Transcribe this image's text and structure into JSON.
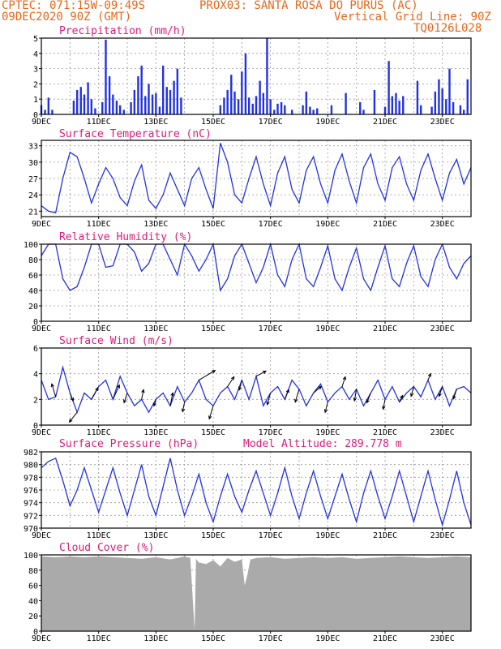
{
  "header": {
    "line1_left": "CPTEC:  071:15W-09:49S",
    "line1_right": "PROX03: SANTA ROSA DO PURUS (AC)",
    "line2_left": "09DEC2020 90Z (GMT)",
    "line2_right": "Vertical Grid Line: 90Z",
    "line3_right": "TQ0126L028"
  },
  "colors": {
    "header": "#e8661a",
    "title": "#e0197a",
    "series": "#2233dd",
    "cloud": "#aaaaaa"
  },
  "x_ticks": [
    "9DEC",
    "11DEC",
    "13DEC",
    "15DEC",
    "17DEC",
    "19DEC",
    "21DEC",
    "23DEC"
  ],
  "x_range_days": [
    9,
    24
  ],
  "chart_data": [
    {
      "id": "precip",
      "type": "bar",
      "title": "Precipitation (mm/h)",
      "ylim": [
        0,
        5
      ],
      "yticks": [
        "0",
        "1",
        "2",
        "3",
        "4",
        "5"
      ],
      "x": [
        9.0,
        9.13,
        9.25,
        9.38,
        10.13,
        10.25,
        10.38,
        10.5,
        10.63,
        10.75,
        10.88,
        11.13,
        11.25,
        11.38,
        11.5,
        11.63,
        11.75,
        11.88,
        12.13,
        12.25,
        12.38,
        12.5,
        12.63,
        12.75,
        12.88,
        13.0,
        13.13,
        13.25,
        13.38,
        13.5,
        13.63,
        13.75,
        13.88,
        15.25,
        15.38,
        15.5,
        15.63,
        15.75,
        15.88,
        16.0,
        16.13,
        16.25,
        16.38,
        16.5,
        16.63,
        16.75,
        16.88,
        17.0,
        17.13,
        17.25,
        17.38,
        17.5,
        17.75,
        18.13,
        18.25,
        18.38,
        18.5,
        18.63,
        19.13,
        19.63,
        20.13,
        20.25,
        20.63,
        21.0,
        21.13,
        21.25,
        21.38,
        21.5,
        21.63,
        22.13,
        22.25,
        22.63,
        22.75,
        22.88,
        23.0,
        23.13,
        23.25,
        23.38,
        23.63,
        23.75,
        23.88
      ],
      "values": [
        0.6,
        0.3,
        1.1,
        0.3,
        0.9,
        1.6,
        1.8,
        1.3,
        2.1,
        1.0,
        0.4,
        0.8,
        4.9,
        2.5,
        1.3,
        0.9,
        0.6,
        0.3,
        0.8,
        1.6,
        2.5,
        3.2,
        1.2,
        2.0,
        1.3,
        1.4,
        0.5,
        3.2,
        1.8,
        1.6,
        2.2,
        3.0,
        1.1,
        0.6,
        1.1,
        1.6,
        2.6,
        1.5,
        1.0,
        2.8,
        4.0,
        1.1,
        0.7,
        1.2,
        2.2,
        1.4,
        5.0,
        1.0,
        0.3,
        0.7,
        0.8,
        0.6,
        0.3,
        0.6,
        1.5,
        0.5,
        0.3,
        0.4,
        0.6,
        1.4,
        0.8,
        0.3,
        1.6,
        0.5,
        3.5,
        1.2,
        1.4,
        0.9,
        1.2,
        2.2,
        0.6,
        0.5,
        1.5,
        2.3,
        1.7,
        1.0,
        3.0,
        0.8,
        0.6,
        0.3,
        2.3
      ]
    },
    {
      "id": "temp",
      "type": "line",
      "title": "Surface Temperature (nC)",
      "ylim": [
        20,
        34
      ],
      "yticks": [
        "21",
        "24",
        "27",
        "30",
        "33"
      ],
      "tickvals": [
        21,
        24,
        27,
        30,
        33
      ],
      "x": [
        9.0,
        9.25,
        9.5,
        9.75,
        10.0,
        10.25,
        10.5,
        10.75,
        11.0,
        11.25,
        11.5,
        11.75,
        12.0,
        12.25,
        12.5,
        12.75,
        13.0,
        13.25,
        13.5,
        13.75,
        14.0,
        14.25,
        14.5,
        14.75,
        15.0,
        15.25,
        15.5,
        15.75,
        16.0,
        16.25,
        16.5,
        16.75,
        17.0,
        17.25,
        17.5,
        17.75,
        18.0,
        18.25,
        18.5,
        18.75,
        19.0,
        19.25,
        19.5,
        19.75,
        20.0,
        20.25,
        20.5,
        20.75,
        21.0,
        21.25,
        21.5,
        21.75,
        22.0,
        22.25,
        22.5,
        22.75,
        23.0,
        23.25,
        23.5,
        23.75,
        24.0
      ],
      "values": [
        22,
        21,
        20.7,
        27,
        31.8,
        31,
        27,
        22.5,
        26,
        29,
        27,
        23.5,
        22,
        26.5,
        29.5,
        23,
        21.5,
        24,
        28,
        25,
        22,
        27,
        29,
        25,
        21.5,
        33.5,
        30,
        24,
        22.5,
        27,
        31,
        26,
        22,
        28,
        31,
        25,
        22.5,
        28.5,
        31,
        26,
        22.5,
        28.5,
        31.5,
        26.5,
        22.5,
        29,
        31.5,
        26,
        23,
        29,
        31,
        26,
        23,
        28.5,
        31.5,
        27,
        23,
        28,
        30.5,
        26,
        29
      ]
    },
    {
      "id": "rh",
      "type": "line",
      "title": "Relative Humidity (%)",
      "ylim": [
        0,
        100
      ],
      "yticks": [
        "0",
        "20",
        "40",
        "60",
        "80",
        "100"
      ],
      "tickvals": [
        0,
        20,
        40,
        60,
        80,
        100
      ],
      "x": [
        9.0,
        9.25,
        9.5,
        9.75,
        10.0,
        10.25,
        10.5,
        10.75,
        11.0,
        11.25,
        11.5,
        11.75,
        12.0,
        12.25,
        12.5,
        12.75,
        13.0,
        13.25,
        13.5,
        13.75,
        14.0,
        14.25,
        14.5,
        14.75,
        15.0,
        15.25,
        15.5,
        15.75,
        16.0,
        16.25,
        16.5,
        16.75,
        17.0,
        17.25,
        17.5,
        17.75,
        18.0,
        18.25,
        18.5,
        18.75,
        19.0,
        19.25,
        19.5,
        19.75,
        20.0,
        20.25,
        20.5,
        20.75,
        21.0,
        21.25,
        21.5,
        21.75,
        22.0,
        22.25,
        22.5,
        22.75,
        23.0,
        23.25,
        23.5,
        23.75,
        24.0
      ],
      "values": [
        85,
        100,
        100,
        55,
        40,
        45,
        70,
        100,
        100,
        70,
        72,
        100,
        100,
        90,
        65,
        75,
        100,
        100,
        80,
        60,
        100,
        85,
        65,
        80,
        100,
        40,
        55,
        85,
        100,
        75,
        50,
        70,
        100,
        60,
        45,
        80,
        100,
        55,
        45,
        70,
        98,
        55,
        40,
        70,
        95,
        55,
        40,
        70,
        98,
        55,
        45,
        75,
        98,
        58,
        45,
        80,
        100,
        70,
        55,
        75,
        85
      ]
    },
    {
      "id": "wind",
      "type": "line",
      "title": "Surface Wind (m/s)",
      "ylim": [
        0,
        6
      ],
      "yticks": [
        "0",
        "2",
        "4",
        "6"
      ],
      "tickvals": [
        0,
        2,
        4,
        6
      ],
      "x": [
        9.0,
        9.25,
        9.5,
        9.75,
        10.0,
        10.25,
        10.5,
        10.75,
        11.0,
        11.25,
        11.5,
        11.75,
        12.0,
        12.25,
        12.5,
        12.75,
        13.0,
        13.25,
        13.5,
        13.75,
        14.0,
        14.25,
        14.5,
        14.75,
        15.0,
        15.25,
        15.5,
        15.75,
        16.0,
        16.25,
        16.5,
        16.75,
        17.0,
        17.25,
        17.5,
        17.75,
        18.0,
        18.25,
        18.5,
        18.75,
        19.0,
        19.25,
        19.5,
        19.75,
        20.0,
        20.25,
        20.5,
        20.75,
        21.0,
        21.25,
        21.5,
        21.75,
        22.0,
        22.25,
        22.5,
        22.75,
        23.0,
        23.25,
        23.5,
        23.75,
        24.0
      ],
      "values": [
        3.5,
        2.0,
        2.2,
        4.5,
        2.5,
        1.0,
        2.5,
        2.0,
        3.0,
        3.5,
        2.0,
        3.8,
        2.5,
        1.5,
        2.0,
        1.0,
        2.0,
        2.5,
        1.5,
        3.0,
        1.8,
        2.5,
        3.5,
        2.0,
        1.5,
        2.5,
        3.0,
        2.0,
        3.5,
        2.0,
        3.8,
        1.5,
        2.5,
        3.0,
        2.0,
        3.5,
        2.8,
        1.5,
        2.5,
        3.2,
        1.8,
        2.5,
        3.0,
        2.0,
        2.8,
        1.5,
        2.5,
        3.5,
        2.0,
        3.0,
        1.8,
        2.5,
        3.0,
        2.2,
        3.5,
        2.0,
        3.0,
        1.5,
        2.8,
        3.0,
        2.5
      ],
      "arrows": {
        "x": [
          9.5,
          10.0,
          10.25,
          10.75,
          11.5,
          12.0,
          12.5,
          13.0,
          13.5,
          14.0,
          14.5,
          15.0,
          15.5,
          16.0,
          16.5,
          17.0,
          17.5,
          18.0,
          18.5,
          19.0,
          19.5,
          20.0,
          20.5,
          21.0,
          21.5,
          22.0,
          22.5,
          23.0,
          23.5
        ],
        "u": [
          -0.6,
          0.5,
          -1.2,
          1.0,
          1.0,
          -0.5,
          0.3,
          -0.3,
          0.4,
          -0.3,
          2.5,
          -0.6,
          1.0,
          -0.4,
          1.5,
          -0.5,
          0.6,
          -0.6,
          1.2,
          -0.4,
          0.5,
          -0.3,
          -0.6,
          -0.3,
          0.5,
          -0.4,
          0.4,
          -0.5,
          -0.5
        ],
        "v": [
          2.0,
          -1.2,
          -1.5,
          1.8,
          2.2,
          -1.5,
          1.5,
          -1.0,
          2.0,
          -1.5,
          1.5,
          -2.0,
          1.5,
          -1.5,
          0.8,
          -1.8,
          1.5,
          -2.0,
          1.0,
          -1.6,
          1.5,
          -1.8,
          -1.5,
          -1.5,
          1.0,
          -1.5,
          1.0,
          -1.5,
          -1.5
        ]
      }
    },
    {
      "id": "pressure",
      "type": "line",
      "title": "Surface Pressure (hPa)",
      "annotation": "Model Altitude: 289.778 m",
      "ylim": [
        970,
        982
      ],
      "yticks": [
        "970",
        "972",
        "974",
        "976",
        "978",
        "980",
        "982"
      ],
      "tickvals": [
        970,
        972,
        974,
        976,
        978,
        980,
        982
      ],
      "x": [
        9.0,
        9.25,
        9.5,
        9.75,
        10.0,
        10.25,
        10.5,
        10.75,
        11.0,
        11.25,
        11.5,
        11.75,
        12.0,
        12.25,
        12.5,
        12.75,
        13.0,
        13.25,
        13.5,
        13.75,
        14.0,
        14.25,
        14.5,
        14.75,
        15.0,
        15.25,
        15.5,
        15.75,
        16.0,
        16.25,
        16.5,
        16.75,
        17.0,
        17.25,
        17.5,
        17.75,
        18.0,
        18.25,
        18.5,
        18.75,
        19.0,
        19.25,
        19.5,
        19.75,
        20.0,
        20.25,
        20.5,
        20.75,
        21.0,
        21.25,
        21.5,
        21.75,
        22.0,
        22.25,
        22.5,
        22.75,
        23.0,
        23.25,
        23.5,
        23.75,
        24.0
      ],
      "values": [
        979.5,
        980.5,
        981,
        977.5,
        973.5,
        976,
        979.5,
        976,
        972.5,
        976,
        979.5,
        975.5,
        972,
        976,
        980,
        975,
        972,
        976.5,
        981,
        976,
        972,
        975,
        978.5,
        974,
        971,
        975,
        978.5,
        975,
        972.5,
        976,
        979,
        975.5,
        972,
        975.5,
        979.5,
        975,
        971.5,
        975.5,
        979,
        975,
        971.5,
        975,
        978.5,
        974.5,
        971,
        975.5,
        979,
        975,
        971.5,
        975,
        979,
        975,
        971,
        975,
        979,
        974.5,
        970.5,
        974.5,
        979,
        974,
        970.5
      ]
    },
    {
      "id": "cloud",
      "type": "area",
      "title": "Cloud Cover (%)",
      "ylim": [
        0,
        100
      ],
      "yticks": [
        "0",
        "20",
        "40",
        "60",
        "80",
        "100"
      ],
      "tickvals": [
        0,
        20,
        40,
        60,
        80,
        100
      ],
      "x": [
        9.0,
        9.5,
        10.0,
        10.5,
        11.0,
        11.5,
        12.0,
        12.5,
        13.0,
        13.5,
        14.0,
        14.2,
        14.35,
        14.4,
        14.5,
        14.75,
        15.0,
        15.25,
        15.5,
        15.75,
        16.0,
        16.1,
        16.2,
        16.3,
        16.5,
        17.0,
        17.5,
        18.0,
        18.5,
        19.0,
        19.5,
        20.0,
        20.5,
        21.0,
        21.5,
        22.0,
        22.5,
        23.0,
        23.5,
        24.0
      ],
      "values": [
        98,
        97,
        98,
        97,
        98,
        97,
        96,
        95,
        97,
        94,
        98,
        96,
        2,
        95,
        90,
        88,
        93,
        85,
        96,
        91,
        94,
        60,
        75,
        94,
        96,
        97,
        95,
        96,
        97,
        96,
        97,
        95,
        96,
        97,
        98,
        97,
        96,
        97,
        98,
        97
      ]
    }
  ]
}
